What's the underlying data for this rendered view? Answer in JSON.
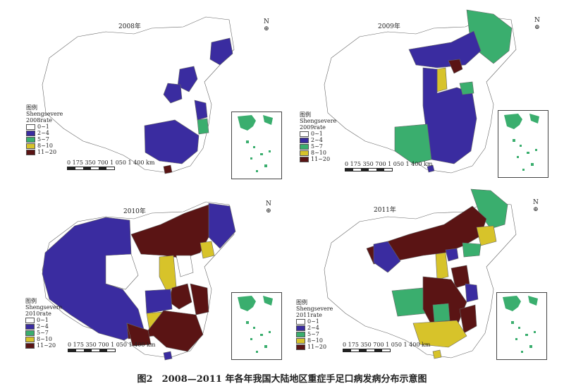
{
  "caption": "图2　2008—2011 年各年我国大陆地区重症手足口病发病分布示意图",
  "legend_title": "图例",
  "legend_sub": "Shengsevere",
  "north_symbol": "N",
  "scale_numbers": "0 175 350  700  1 050 1 400",
  "scale_unit": "km",
  "classes": [
    {
      "label": "0~1",
      "color": "#ffffff"
    },
    {
      "label": "2~4",
      "color": "#3a2ca0"
    },
    {
      "label": "5~7",
      "color": "#3aae6e"
    },
    {
      "label": "8~10",
      "color": "#d7c32a"
    },
    {
      "label": "11~20",
      "color": "#5a1414"
    }
  ],
  "panels": [
    {
      "id": "p2008",
      "title": "2008年",
      "rate_label": "2008rate"
    },
    {
      "id": "p2009",
      "title": "2009年",
      "rate_label": "2009rate"
    },
    {
      "id": "p2010",
      "title": "2010年",
      "rate_label": "2010rate"
    },
    {
      "id": "p2011",
      "title": "2011年",
      "rate_label": "2011rate"
    }
  ]
}
